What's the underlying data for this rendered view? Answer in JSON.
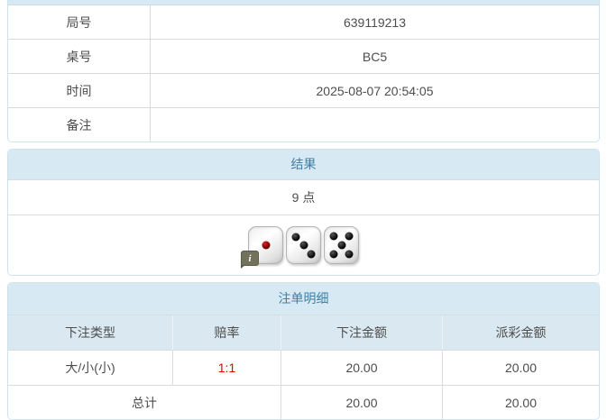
{
  "colors": {
    "panel_header_bg": "#d7e9f3",
    "panel_header_text": "#3f7fa8",
    "panel_border": "#cfe3ee",
    "row_separator": "#d9d9d9",
    "body_text": "#4d4d4d",
    "odds_red": "#e60000"
  },
  "info_panel": {
    "rows": [
      {
        "label": "局号",
        "value": "639119213"
      },
      {
        "label": "桌号",
        "value": "BC5"
      },
      {
        "label": "时间",
        "value": "2025-08-07 20:54:05"
      },
      {
        "label": "备注",
        "value": ""
      }
    ]
  },
  "result_panel": {
    "title": "结果",
    "points": "9 点",
    "info_badge": "i",
    "dice": [
      {
        "value": 1,
        "dot_color": "#600000",
        "dot_highlight": "#e02020"
      },
      {
        "value": 3,
        "dot_color": "#000000",
        "dot_highlight": "#555555"
      },
      {
        "value": 5,
        "dot_color": "#000000",
        "dot_highlight": "#555555"
      }
    ]
  },
  "bet_panel": {
    "title": "注单明细",
    "columns": [
      "下注类型",
      "赔率",
      "下注金额",
      "派彩金额"
    ],
    "rows": [
      {
        "bet_type": "大/小(小)",
        "odds": "1:1",
        "bet_amount": "20.00",
        "payout": "20.00"
      }
    ],
    "total": {
      "label": "总计",
      "bet_amount": "20.00",
      "payout": "20.00"
    }
  }
}
